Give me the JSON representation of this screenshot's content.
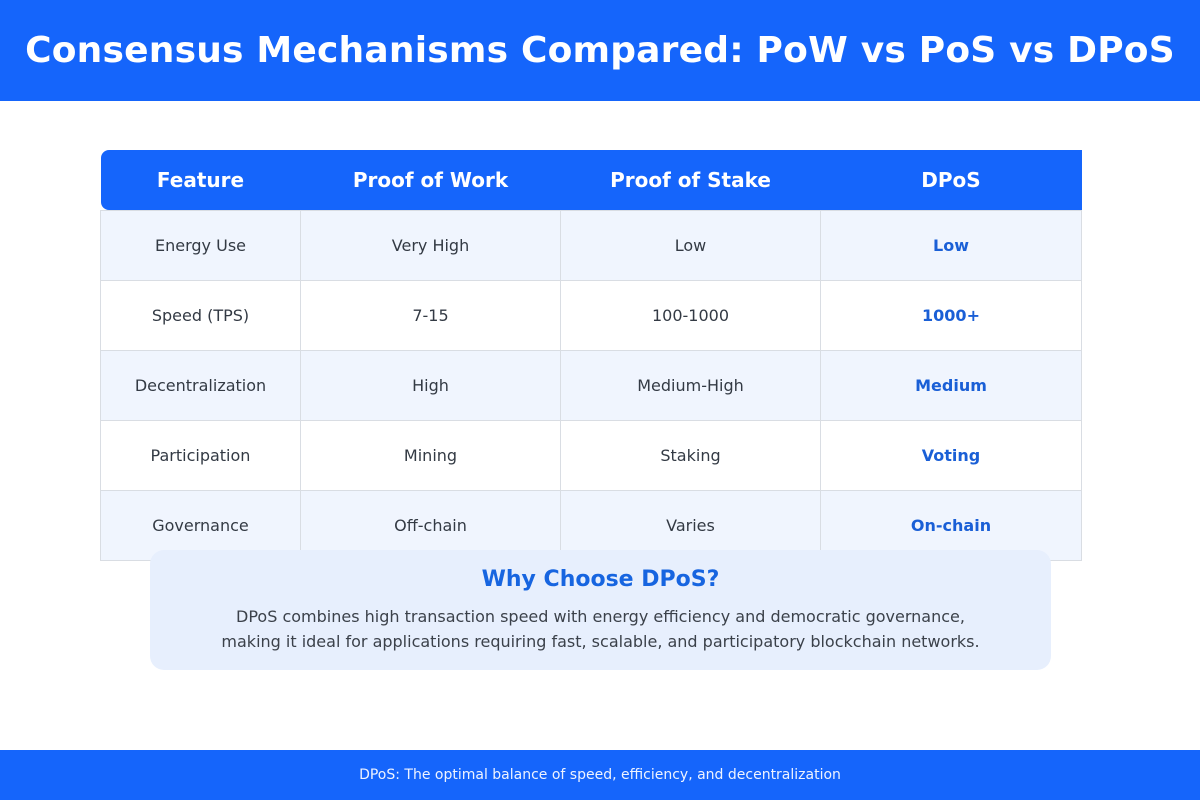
{
  "header": {
    "title": "Consensus Mechanisms Compared: PoW vs PoS vs DPoS"
  },
  "table": {
    "columns": [
      "Feature",
      "Proof of Work",
      "Proof of Stake",
      "DPoS"
    ],
    "rows": [
      {
        "feature": "Energy Use",
        "pow": "Very High",
        "pos": "Low",
        "dpos": "Low"
      },
      {
        "feature": "Speed (TPS)",
        "pow": "7-15",
        "pos": "100-1000",
        "dpos": "1000+"
      },
      {
        "feature": "Decentralization",
        "pow": "High",
        "pos": "Medium-High",
        "dpos": "Medium"
      },
      {
        "feature": "Participation",
        "pow": "Mining",
        "pos": "Staking",
        "dpos": "Voting"
      },
      {
        "feature": "Governance",
        "pow": "Off-chain",
        "pos": "Varies",
        "dpos": "On-chain"
      }
    ]
  },
  "callout": {
    "title": "Why Choose DPoS?",
    "line1": "DPoS combines high transaction speed with energy efficiency and democratic governance,",
    "line2": "making it ideal for applications requiring fast, scalable, and participatory blockchain networks."
  },
  "footer": {
    "text": "DPoS: The optimal balance of speed, efficiency, and decentralization"
  },
  "colors": {
    "primary": "#1565fb",
    "highlight_text": "#1a5fd6",
    "row_alt": "#f0f5fe",
    "callout_bg": "#e7effd"
  }
}
